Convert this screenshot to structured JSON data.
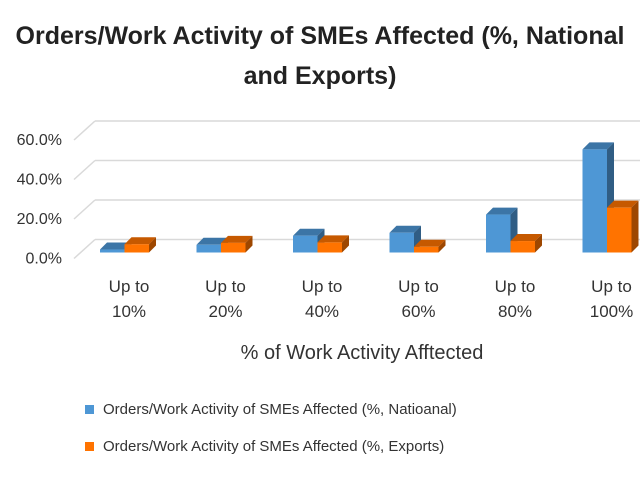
{
  "chart_data": {
    "type": "bar",
    "title_line1": "Orders/Work Activity of SMEs Affected (%, National",
    "title_line2": "and Exports)",
    "xlabel": "% of Work Activity Afftected",
    "ylabel": "",
    "categories": [
      [
        "Up to",
        "10%"
      ],
      [
        "Up to",
        "20%"
      ],
      [
        "Up to",
        "40%"
      ],
      [
        "Up to",
        "60%"
      ],
      [
        "Up to",
        "80%"
      ],
      [
        "Up to",
        "100%"
      ]
    ],
    "yticks": [
      "0.0%",
      "20.0%",
      "40.0%",
      "60.0%"
    ],
    "ylim": [
      0,
      60
    ],
    "grid": true,
    "legend_position": "bottom",
    "series": [
      {
        "name": "Orders/Work Activity of SMEs Affected (%, Natioanal)",
        "color": "#4e97d5",
        "values": [
          1.5,
          3.9,
          8.5,
          10.0,
          19.2,
          52.2
        ]
      },
      {
        "name": "Orders/Work Activity of SMEs Affected (%, Exports)",
        "color": "#ff7300",
        "values": [
          4.2,
          4.9,
          5.1,
          2.9,
          5.8,
          22.7
        ]
      }
    ]
  }
}
